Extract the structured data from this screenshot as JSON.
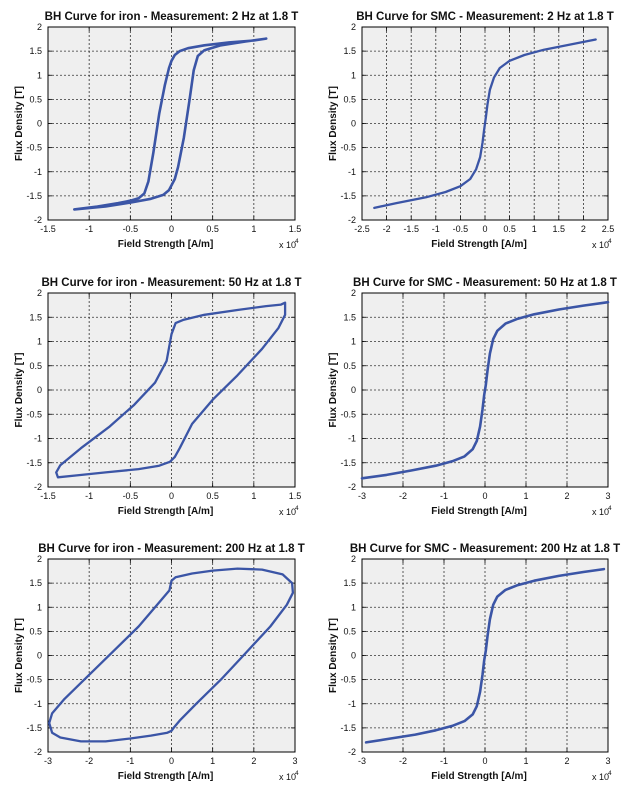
{
  "chart_data": [
    {
      "type": "line",
      "title": "BH Curve for iron - Measurement: 2 Hz at 1.8 T",
      "xlabel": "Field Strength [A/m]",
      "ylabel": "Flux Density [T]",
      "x_multiplier_label": "x 10",
      "x_multiplier_exponent": "4",
      "x_scale": 10000,
      "xlim": [
        -1.5,
        1.5
      ],
      "ylim": [
        -2,
        2
      ],
      "xticks": [
        -1.5,
        -1,
        -0.5,
        0,
        0.5,
        1,
        1.5
      ],
      "xtick_labels": [
        "-1.5",
        "-1",
        "-0.5",
        "0",
        "0.5",
        "1",
        "1.5"
      ],
      "yticks": [
        -2,
        -1.5,
        -1,
        -0.5,
        0,
        0.5,
        1,
        1.5,
        2
      ],
      "ytick_labels": [
        "-2",
        "-1.5",
        "-1",
        "-0.5",
        "0",
        "0.5",
        "1",
        "1.5",
        "2"
      ],
      "grid": true,
      "line_color": "#3b55a6",
      "line_width": 2.6,
      "series": [
        {
          "x": [
            -1.18,
            -0.9,
            -0.65,
            -0.5,
            -0.4,
            -0.33,
            -0.28,
            -0.22,
            -0.15,
            -0.08,
            -0.03,
            0.0,
            0.04,
            0.1,
            0.2,
            0.4,
            0.7,
            1.0,
            1.15,
            1.15,
            0.9,
            0.6,
            0.4,
            0.32,
            0.27,
            0.22,
            0.15,
            0.08,
            0.04,
            0.01,
            -0.03,
            -0.1,
            -0.25,
            -0.5,
            -0.8,
            -1.18
          ],
          "y": [
            -1.78,
            -1.72,
            -1.65,
            -1.6,
            -1.55,
            -1.45,
            -1.2,
            -0.6,
            0.2,
            0.8,
            1.15,
            1.3,
            1.42,
            1.5,
            1.56,
            1.62,
            1.68,
            1.72,
            1.76,
            1.76,
            1.7,
            1.62,
            1.52,
            1.4,
            1.1,
            0.5,
            -0.3,
            -0.9,
            -1.15,
            -1.25,
            -1.38,
            -1.48,
            -1.56,
            -1.64,
            -1.72,
            -1.78
          ]
        }
      ]
    },
    {
      "type": "line",
      "title": "BH Curve for SMC - Measurement: 2 Hz at 1.8 T",
      "xlabel": "Field Strength [A/m]",
      "ylabel": "Flux Density [T]",
      "x_multiplier_label": "x 10",
      "x_multiplier_exponent": "4",
      "x_scale": 10000,
      "xlim": [
        -2.5,
        2.5
      ],
      "ylim": [
        -2,
        2
      ],
      "xticks": [
        -2.5,
        -2,
        -1.5,
        -1,
        -0.5,
        0,
        0.5,
        1,
        1.5,
        2,
        2.5
      ],
      "xtick_labels": [
        "-2.5",
        "-2",
        "-1.5",
        "-1",
        "-0.5",
        "0",
        "0.5",
        "1",
        "1.5",
        "2",
        "2.5"
      ],
      "yticks": [
        -2,
        -1.5,
        -1,
        -0.5,
        0,
        0.5,
        1,
        1.5,
        2
      ],
      "ytick_labels": [
        "-2",
        "-1.5",
        "-1",
        "-0.5",
        "0",
        "0.5",
        "1",
        "1.5",
        "2"
      ],
      "grid": true,
      "line_color": "#3b55a6",
      "line_width": 2.3,
      "series": [
        {
          "x": [
            -2.25,
            -1.8,
            -1.2,
            -0.8,
            -0.5,
            -0.3,
            -0.18,
            -0.1,
            -0.05,
            -0.02,
            0.0,
            0.02,
            0.05,
            0.1,
            0.18,
            0.3,
            0.5,
            0.8,
            1.2,
            1.8,
            2.25
          ],
          "y": [
            -1.75,
            -1.65,
            -1.53,
            -1.42,
            -1.3,
            -1.15,
            -0.95,
            -0.7,
            -0.4,
            -0.15,
            0.0,
            0.15,
            0.4,
            0.7,
            0.95,
            1.15,
            1.3,
            1.42,
            1.53,
            1.65,
            1.74
          ]
        }
      ]
    },
    {
      "type": "line",
      "title": "BH Curve for iron - Measurement: 50 Hz at 1.8 T",
      "xlabel": "Field Strength [A/m]",
      "ylabel": "Flux Density [T]",
      "x_multiplier_label": "x 10",
      "x_multiplier_exponent": "4",
      "x_scale": 10000,
      "xlim": [
        -1.5,
        1.5
      ],
      "ylim": [
        -2,
        2
      ],
      "xticks": [
        -1.5,
        -1,
        -0.5,
        0,
        0.5,
        1,
        1.5
      ],
      "xtick_labels": [
        "-1.5",
        "-1",
        "-0.5",
        "0",
        "0.5",
        "1",
        "1.5"
      ],
      "yticks": [
        -2,
        -1.5,
        -1,
        -0.5,
        0,
        0.5,
        1,
        1.5,
        2
      ],
      "ytick_labels": [
        "-2",
        "-1.5",
        "-1",
        "-0.5",
        "0",
        "0.5",
        "1",
        "1.5",
        "2"
      ],
      "grid": true,
      "line_color": "#3b55a6",
      "line_width": 2.3,
      "series": [
        {
          "x": [
            -1.38,
            -1.4,
            -1.35,
            -1.1,
            -0.75,
            -0.45,
            -0.2,
            -0.06,
            0.0,
            0.05,
            0.15,
            0.4,
            0.8,
            1.15,
            1.33,
            1.38,
            1.38,
            1.3,
            1.1,
            0.8,
            0.5,
            0.25,
            0.1,
            0.04,
            -0.02,
            -0.15,
            -0.4,
            -0.8,
            -1.15,
            -1.38
          ],
          "y": [
            -1.8,
            -1.7,
            -1.55,
            -1.2,
            -0.75,
            -0.3,
            0.15,
            0.6,
            1.15,
            1.38,
            1.45,
            1.55,
            1.65,
            1.73,
            1.76,
            1.8,
            1.55,
            1.28,
            0.85,
            0.3,
            -0.2,
            -0.7,
            -1.2,
            -1.38,
            -1.48,
            -1.56,
            -1.63,
            -1.7,
            -1.76,
            -1.8
          ]
        }
      ]
    },
    {
      "type": "line",
      "title": "BH Curve for SMC - Measurement: 50 Hz at 1.8 T",
      "xlabel": "Field Strength [A/m]",
      "ylabel": "Flux Density [T]",
      "x_multiplier_label": "x 10",
      "x_multiplier_exponent": "4",
      "x_scale": 10000,
      "xlim": [
        -3,
        3
      ],
      "ylim": [
        -2,
        2
      ],
      "xticks": [
        -3,
        -2,
        -1,
        0,
        1,
        2,
        3
      ],
      "xtick_labels": [
        "-3",
        "-2",
        "-1",
        "0",
        "1",
        "2",
        "3"
      ],
      "yticks": [
        -2,
        -1.5,
        -1,
        -0.5,
        0,
        0.5,
        1,
        1.5,
        2
      ],
      "ytick_labels": [
        "-2",
        "-1.5",
        "-1",
        "-0.5",
        "0",
        "0.5",
        "1",
        "1.5",
        "2"
      ],
      "grid": true,
      "line_color": "#3b55a6",
      "line_width": 2.6,
      "series": [
        {
          "x": [
            -3.0,
            -2.4,
            -1.8,
            -1.2,
            -0.8,
            -0.5,
            -0.3,
            -0.2,
            -0.12,
            -0.06,
            -0.02,
            0.0,
            0.02,
            0.06,
            0.12,
            0.2,
            0.3,
            0.5,
            0.8,
            1.2,
            1.8,
            2.4,
            3.0
          ],
          "y": [
            -1.82,
            -1.75,
            -1.66,
            -1.56,
            -1.47,
            -1.37,
            -1.22,
            -1.05,
            -0.75,
            -0.4,
            -0.1,
            0.0,
            0.1,
            0.4,
            0.75,
            1.05,
            1.22,
            1.37,
            1.47,
            1.56,
            1.66,
            1.74,
            1.81
          ]
        }
      ]
    },
    {
      "type": "line",
      "title": "BH Curve for iron - Measurement: 200 Hz at 1.8 T",
      "xlabel": "Field Strength [A/m]",
      "ylabel": "Flux Density [T]",
      "x_multiplier_label": "x 10",
      "x_multiplier_exponent": "4",
      "x_scale": 10000,
      "xlim": [
        -3,
        3
      ],
      "ylim": [
        -2,
        2
      ],
      "xticks": [
        -3,
        -2,
        -1,
        0,
        1,
        2,
        3
      ],
      "xtick_labels": [
        "-3",
        "-2",
        "-1",
        "0",
        "1",
        "2",
        "3"
      ],
      "yticks": [
        -2,
        -1.5,
        -1,
        -0.5,
        0,
        0.5,
        1,
        1.5,
        2
      ],
      "ytick_labels": [
        "-2",
        "-1.5",
        "-1",
        "-0.5",
        "0",
        "0.5",
        "1",
        "1.5",
        "2"
      ],
      "grid": true,
      "line_color": "#3b55a6",
      "line_width": 2.3,
      "series": [
        {
          "x": [
            -2.9,
            -2.97,
            -2.9,
            -2.6,
            -2.0,
            -1.4,
            -0.8,
            -0.3,
            -0.05,
            0.0,
            0.1,
            0.5,
            1.0,
            1.6,
            2.2,
            2.7,
            2.93,
            2.95,
            2.8,
            2.4,
            1.8,
            1.2,
            0.6,
            0.2,
            0.05,
            0.0,
            -0.1,
            -0.5,
            -1.0,
            -1.6,
            -2.2,
            -2.7,
            -2.9
          ],
          "y": [
            -1.6,
            -1.4,
            -1.2,
            -0.9,
            -0.4,
            0.1,
            0.6,
            1.1,
            1.35,
            1.55,
            1.62,
            1.7,
            1.76,
            1.8,
            1.78,
            1.68,
            1.5,
            1.3,
            1.05,
            0.6,
            0.05,
            -0.5,
            -1.0,
            -1.35,
            -1.5,
            -1.56,
            -1.6,
            -1.66,
            -1.72,
            -1.78,
            -1.78,
            -1.7,
            -1.6
          ]
        }
      ]
    },
    {
      "type": "line",
      "title": "BH Curve for SMC - Measurement: 200 Hz at 1.8 T",
      "xlabel": "Field Strength [A/m]",
      "ylabel": "Flux Density [T]",
      "x_multiplier_label": "x 10",
      "x_multiplier_exponent": "4",
      "x_scale": 10000,
      "xlim": [
        -3,
        3
      ],
      "ylim": [
        -2,
        2
      ],
      "xticks": [
        -3,
        -2,
        -1,
        0,
        1,
        2,
        3
      ],
      "xtick_labels": [
        "-3",
        "-2",
        "-1",
        "0",
        "1",
        "2",
        "3"
      ],
      "yticks": [
        -2,
        -1.5,
        -1,
        -0.5,
        0,
        0.5,
        1,
        1.5,
        2
      ],
      "ytick_labels": [
        "-2",
        "-1.5",
        "-1",
        "-0.5",
        "0",
        "0.5",
        "1",
        "1.5",
        "2"
      ],
      "grid": true,
      "line_color": "#3b55a6",
      "line_width": 2.6,
      "series": [
        {
          "x": [
            -2.9,
            -2.3,
            -1.7,
            -1.2,
            -0.8,
            -0.5,
            -0.3,
            -0.2,
            -0.12,
            -0.06,
            -0.02,
            0.0,
            0.02,
            0.06,
            0.12,
            0.2,
            0.3,
            0.5,
            0.8,
            1.2,
            1.8,
            2.4,
            2.9
          ],
          "y": [
            -1.8,
            -1.72,
            -1.64,
            -1.55,
            -1.46,
            -1.36,
            -1.22,
            -1.05,
            -0.75,
            -0.4,
            -0.1,
            0.0,
            0.1,
            0.4,
            0.75,
            1.05,
            1.22,
            1.36,
            1.46,
            1.55,
            1.65,
            1.73,
            1.79
          ]
        }
      ]
    }
  ]
}
